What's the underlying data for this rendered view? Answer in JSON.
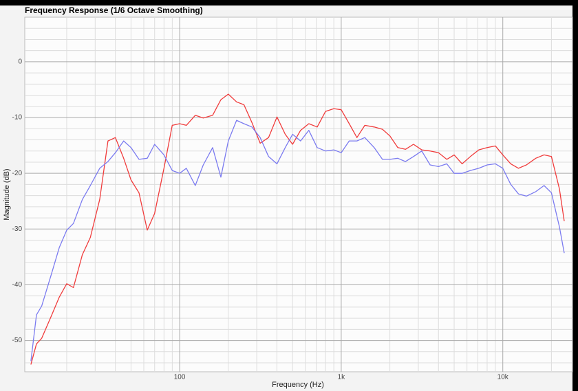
{
  "chart_data": {
    "type": "line",
    "title": "Frequency Response (1/6 Octave Smoothing)",
    "x_label": "Frequency (Hz)",
    "y_label": "Magnitude (dB)",
    "xscale": "log",
    "grid": true,
    "xlim": [
      11,
      27000
    ],
    "ylim": [
      -55.6,
      8
    ],
    "xticks": [
      {
        "value": 100,
        "label": "100"
      },
      {
        "value": 1000,
        "label": "1k"
      },
      {
        "value": 10000,
        "label": "10k"
      }
    ],
    "yticks": [
      0,
      -10,
      -20,
      -30,
      -40,
      -50
    ],
    "x_minor_ticks": [
      20,
      30,
      40,
      50,
      60,
      70,
      80,
      90,
      200,
      300,
      400,
      500,
      600,
      700,
      800,
      900,
      2000,
      3000,
      4000,
      5000,
      6000,
      7000,
      8000,
      9000,
      20000
    ],
    "y_minor_ticks": [
      6,
      4,
      2,
      -2,
      -4,
      -6,
      -8,
      -12,
      -14,
      -16,
      -18,
      -22,
      -24,
      -26,
      -28,
      -32,
      -34,
      -36,
      -38,
      -42,
      -44,
      -46,
      -48,
      -52,
      -54
    ],
    "x": [
      12,
      13,
      14,
      16,
      18,
      20,
      22,
      25,
      28,
      32,
      36,
      40,
      45,
      50,
      56,
      63,
      70,
      80,
      90,
      100,
      110,
      125,
      140,
      160,
      180,
      200,
      225,
      250,
      280,
      315,
      355,
      400,
      450,
      500,
      560,
      630,
      710,
      800,
      900,
      1000,
      1120,
      1250,
      1400,
      1600,
      1800,
      2000,
      2240,
      2500,
      2800,
      3150,
      3550,
      4000,
      4500,
      5000,
      5600,
      6300,
      7100,
      8000,
      9000,
      10000,
      11200,
      12500,
      14000,
      16000,
      18000,
      20000,
      22400,
      24000
    ],
    "series": [
      {
        "color": "#f03c3c",
        "values": [
          -54.3,
          -50.6,
          -49.6,
          -45.7,
          -42.2,
          -39.8,
          -40.5,
          -34.6,
          -31.5,
          -24.7,
          -14.2,
          -13.6,
          -17.3,
          -21.2,
          -23.5,
          -30.2,
          -27.2,
          -19.1,
          -11.4,
          -11.1,
          -11.4,
          -9.6,
          -10.1,
          -9.6,
          -6.8,
          -5.8,
          -7.2,
          -7.7,
          -10.9,
          -14.6,
          -13.6,
          -9.9,
          -13.0,
          -14.8,
          -12.3,
          -11.1,
          -11.7,
          -8.9,
          -8.4,
          -8.6,
          -11.1,
          -13.6,
          -11.4,
          -11.7,
          -12.1,
          -13.3,
          -15.4,
          -15.7,
          -14.8,
          -15.8,
          -16.0,
          -16.3,
          -17.5,
          -16.7,
          -18.3,
          -17.0,
          -15.8,
          -15.4,
          -15.1,
          -16.7,
          -18.3,
          -19.1,
          -18.5,
          -17.3,
          -16.7,
          -17.0,
          -22.8,
          -28.6
        ]
      },
      {
        "color": "#7b7bf0",
        "values": [
          -53.7,
          -45.4,
          -43.8,
          -38.3,
          -33.3,
          -30.2,
          -29.0,
          -24.7,
          -22.2,
          -19.1,
          -17.9,
          -16.3,
          -14.2,
          -15.4,
          -17.5,
          -17.3,
          -14.8,
          -16.7,
          -19.5,
          -20.0,
          -19.1,
          -22.2,
          -18.5,
          -15.4,
          -20.7,
          -14.2,
          -10.5,
          -11.1,
          -11.7,
          -13.6,
          -17.0,
          -18.3,
          -15.4,
          -13.0,
          -14.2,
          -12.3,
          -15.4,
          -16.0,
          -15.8,
          -16.3,
          -14.2,
          -14.2,
          -13.6,
          -15.4,
          -17.5,
          -17.5,
          -17.3,
          -17.9,
          -17.0,
          -16.0,
          -18.5,
          -18.8,
          -18.3,
          -20.0,
          -20.0,
          -19.5,
          -19.1,
          -18.5,
          -18.3,
          -19.1,
          -22.0,
          -23.7,
          -24.1,
          -23.3,
          -22.2,
          -23.5,
          -29.6,
          -34.3
        ]
      }
    ]
  }
}
